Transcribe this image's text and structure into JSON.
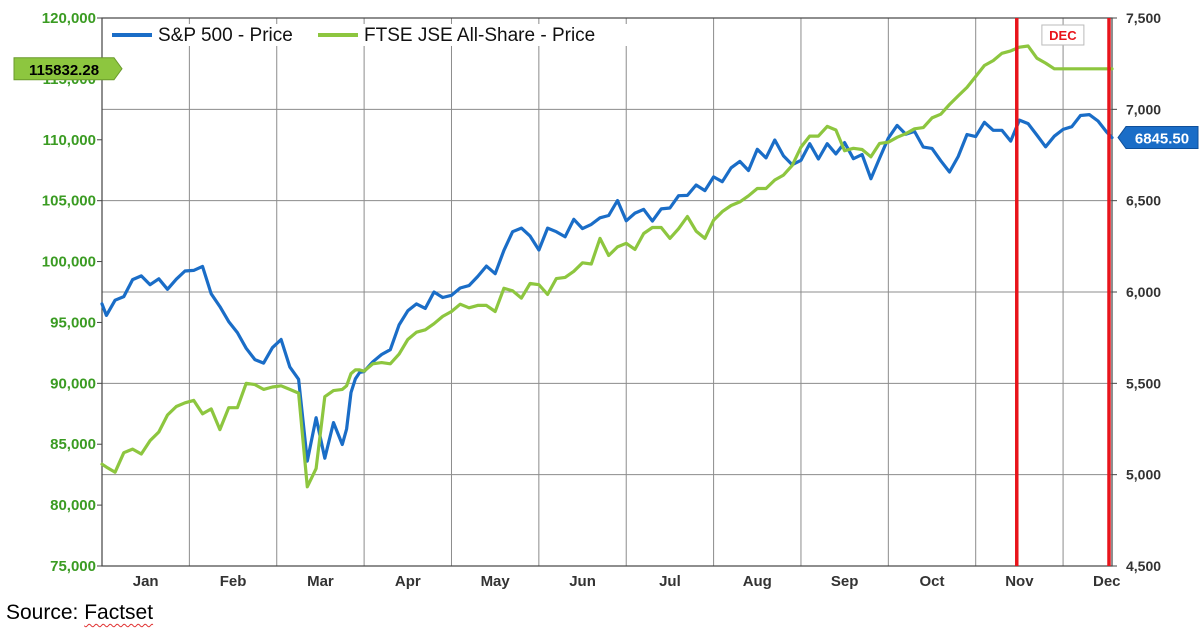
{
  "chart_data": {
    "type": "line",
    "colors": {
      "sp500": "#1a6dc7",
      "ftse": "#8dc63f",
      "marker": "#e8141b",
      "left_axis_text": "#3a9b22"
    },
    "legend": {
      "placement": "top-left"
    },
    "grid": true,
    "x_categories": [
      "Jan",
      "Feb",
      "Mar",
      "Apr",
      "May",
      "Jun",
      "Jul",
      "Aug",
      "Sep",
      "Oct",
      "Nov",
      "Dec"
    ],
    "left_axis": {
      "series": "FTSE JSE All-Share - Price",
      "ylim": [
        75000,
        120000
      ],
      "ticks": [
        "75,000",
        "80,000",
        "85,000",
        "90,000",
        "95,000",
        "100,000",
        "105,000",
        "110,000",
        "115,000",
        "120,000"
      ]
    },
    "right_axis": {
      "series": "S&P 500 - Price",
      "ylim": [
        4500,
        7500
      ],
      "ticks": [
        "4,500",
        "5,000",
        "5,500",
        "6,000",
        "6,500",
        "7,000",
        "7,500"
      ]
    },
    "annotation": {
      "text": "DEC",
      "start": 11.47,
      "end": 12.56
    },
    "last_value_labels": {
      "ftse": "115832.28",
      "sp500": "6845.50"
    },
    "series": [
      {
        "name": "S&P 500 - Price",
        "axis": "right",
        "x": [
          1.0,
          1.05,
          1.15,
          1.25,
          1.35,
          1.45,
          1.55,
          1.65,
          1.75,
          1.85,
          1.95,
          2.05,
          2.15,
          2.25,
          2.35,
          2.45,
          2.55,
          2.65,
          2.75,
          2.85,
          2.95,
          3.05,
          3.15,
          3.25,
          3.35,
          3.45,
          3.55,
          3.65,
          3.75,
          3.8,
          3.85,
          3.9,
          3.95,
          4.0,
          4.1,
          4.2,
          4.3,
          4.4,
          4.5,
          4.6,
          4.7,
          4.8,
          4.9,
          5.0,
          5.1,
          5.2,
          5.3,
          5.4,
          5.5,
          5.6,
          5.7,
          5.8,
          5.9,
          6.0,
          6.1,
          6.2,
          6.3,
          6.4,
          6.5,
          6.6,
          6.7,
          6.8,
          6.9,
          7.0,
          7.1,
          7.2,
          7.3,
          7.4,
          7.5,
          7.6,
          7.7,
          7.8,
          7.9,
          8.0,
          8.1,
          8.2,
          8.3,
          8.4,
          8.5,
          8.6,
          8.7,
          8.8,
          8.9,
          9.0,
          9.1,
          9.2,
          9.3,
          9.4,
          9.5,
          9.6,
          9.7,
          9.8,
          9.9,
          10.0,
          10.1,
          10.2,
          10.3,
          10.4,
          10.5,
          10.6,
          10.7,
          10.8,
          10.9,
          11.0,
          11.1,
          11.2,
          11.3,
          11.4,
          11.5,
          11.6,
          11.7,
          11.8,
          11.9,
          12.0,
          12.1,
          12.2,
          12.3,
          12.4,
          12.5,
          12.56
        ],
        "values": [
          5935,
          5872,
          5955,
          5975,
          6068,
          6088,
          6040,
          6072,
          6015,
          6070,
          6115,
          6118,
          6140,
          5990,
          5920,
          5838,
          5778,
          5692,
          5630,
          5611,
          5695,
          5740,
          5590,
          5522,
          5074,
          5312,
          5090,
          5285,
          5165,
          5250,
          5450,
          5525,
          5560,
          5565,
          5618,
          5658,
          5684,
          5820,
          5897,
          5935,
          5910,
          6000,
          5970,
          5982,
          6022,
          6035,
          6085,
          6142,
          6100,
          6228,
          6330,
          6350,
          6306,
          6230,
          6350,
          6330,
          6302,
          6398,
          6347,
          6370,
          6406,
          6419,
          6501,
          6390,
          6432,
          6452,
          6388,
          6455,
          6460,
          6527,
          6529,
          6586,
          6555,
          6630,
          6604,
          6680,
          6715,
          6665,
          6781,
          6734,
          6832,
          6745,
          6697,
          6721,
          6812,
          6728,
          6812,
          6756,
          6818,
          6730,
          6752,
          6620,
          6733,
          6842,
          6912,
          6864,
          6879,
          6793,
          6786,
          6718,
          6657,
          6742,
          6862,
          6851,
          6929,
          6885,
          6885,
          6826,
          6941,
          6922,
          6859,
          6795,
          6853,
          6890,
          6905,
          6966,
          6971,
          6936,
          6875,
          6845.5
        ]
      },
      {
        "name": "FTSE JSE All-Share - Price",
        "axis": "left",
        "x": [
          1.0,
          1.05,
          1.15,
          1.25,
          1.35,
          1.45,
          1.55,
          1.65,
          1.75,
          1.85,
          1.95,
          2.05,
          2.15,
          2.25,
          2.35,
          2.45,
          2.55,
          2.65,
          2.75,
          2.85,
          2.95,
          3.05,
          3.15,
          3.25,
          3.35,
          3.45,
          3.55,
          3.65,
          3.75,
          3.8,
          3.85,
          3.9,
          3.95,
          4.0,
          4.1,
          4.2,
          4.3,
          4.4,
          4.5,
          4.6,
          4.7,
          4.8,
          4.9,
          5.0,
          5.1,
          5.2,
          5.3,
          5.4,
          5.5,
          5.6,
          5.7,
          5.8,
          5.9,
          6.0,
          6.1,
          6.2,
          6.3,
          6.4,
          6.5,
          6.6,
          6.7,
          6.8,
          6.9,
          7.0,
          7.1,
          7.2,
          7.3,
          7.4,
          7.5,
          7.6,
          7.7,
          7.8,
          7.9,
          8.0,
          8.1,
          8.2,
          8.3,
          8.4,
          8.5,
          8.6,
          8.7,
          8.8,
          8.9,
          9.0,
          9.1,
          9.2,
          9.3,
          9.4,
          9.5,
          9.6,
          9.7,
          9.8,
          9.9,
          10.0,
          10.1,
          10.2,
          10.3,
          10.4,
          10.5,
          10.6,
          10.7,
          10.8,
          10.9,
          11.0,
          11.1,
          11.2,
          11.3,
          11.4,
          11.5,
          11.6,
          11.7,
          11.8,
          11.9,
          12.0,
          12.1,
          12.2,
          12.3,
          12.4,
          12.5,
          12.56
        ],
        "values": [
          83360,
          83120,
          82700,
          84300,
          84600,
          84200,
          85300,
          86000,
          87400,
          88100,
          88400,
          88600,
          87500,
          87900,
          86200,
          88000,
          88000,
          90000,
          89900,
          89500,
          89700,
          89800,
          89500,
          89200,
          81500,
          83000,
          88900,
          89400,
          89500,
          89800,
          90800,
          91100,
          91100,
          91000,
          91600,
          91700,
          91600,
          92400,
          93600,
          94200,
          94400,
          94900,
          95500,
          95900,
          96500,
          96200,
          96400,
          96400,
          95900,
          97800,
          97600,
          97000,
          98200,
          98100,
          97300,
          98600,
          98700,
          99200,
          99900,
          99800,
          101900,
          100500,
          101200,
          101500,
          101000,
          102300,
          102800,
          102800,
          101900,
          102700,
          103700,
          102500,
          101900,
          103400,
          104100,
          104600,
          104900,
          105400,
          106000,
          106000,
          106700,
          107100,
          107900,
          109400,
          110300,
          110300,
          111100,
          110800,
          109100,
          109300,
          109200,
          108600,
          109700,
          109800,
          110200,
          110500,
          110900,
          111000,
          111800,
          112100,
          112900,
          113600,
          114300,
          115200,
          116100,
          116500,
          117100,
          117300,
          117600,
          117700,
          116700,
          116300,
          115832.28,
          115832.28,
          115832.28,
          115832.28,
          115832.28,
          115832.28,
          115832.28,
          115832.28
        ]
      }
    ]
  },
  "source": {
    "prefix": "Source: ",
    "name": "Factset"
  }
}
